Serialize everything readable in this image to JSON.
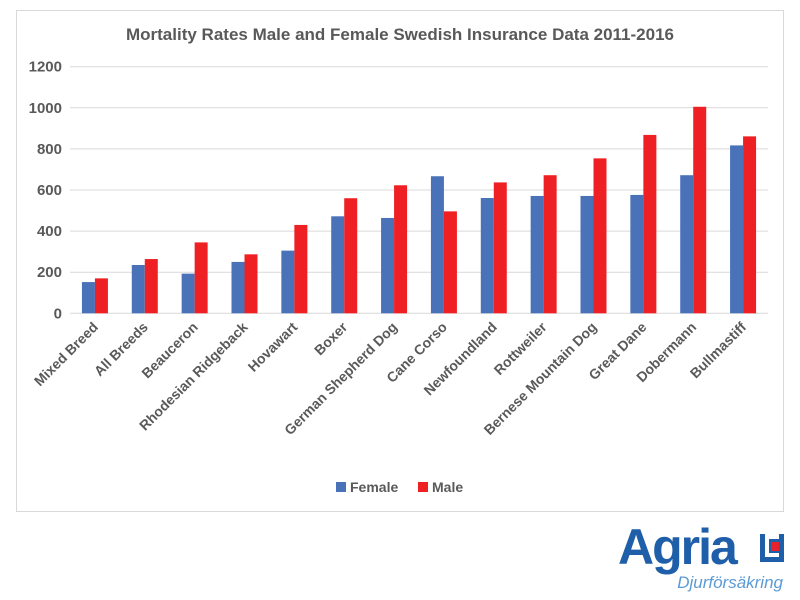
{
  "chart_data": {
    "type": "bar",
    "title": "Mortality Rates Male and Female Swedish Insurance Data 2011-2016",
    "categories": [
      "Mixed Breed",
      "All Breeds",
      "Beauceron",
      "Rhodesian Ridgeback",
      "Hovawart",
      "Boxer",
      "German Shepherd Dog",
      "Cane Corso",
      "Newfoundland",
      "Rottweiler",
      "Bernese Mountain Dog",
      "Great Dane",
      "Dobermann",
      "Bullmastiff"
    ],
    "series": [
      {
        "name": "Female",
        "color": "#4a72b8",
        "values": [
          152,
          235,
          193,
          250,
          305,
          472,
          464,
          667,
          561,
          571,
          571,
          576,
          672,
          817
        ]
      },
      {
        "name": "Male",
        "color": "#ee2024",
        "values": [
          170,
          264,
          345,
          287,
          430,
          560,
          623,
          496,
          637,
          672,
          754,
          868,
          1005,
          861
        ]
      }
    ],
    "ylim": [
      0,
      1200
    ],
    "yticks": [
      "0",
      "200",
      "400",
      "600",
      "800",
      "1000",
      "1200"
    ],
    "grid": true,
    "legend": "bottom"
  },
  "logo": {
    "name": "Agria",
    "tagline": "Djurförsäkring",
    "color": "#1f5ea8",
    "accent": "#e8222a"
  }
}
